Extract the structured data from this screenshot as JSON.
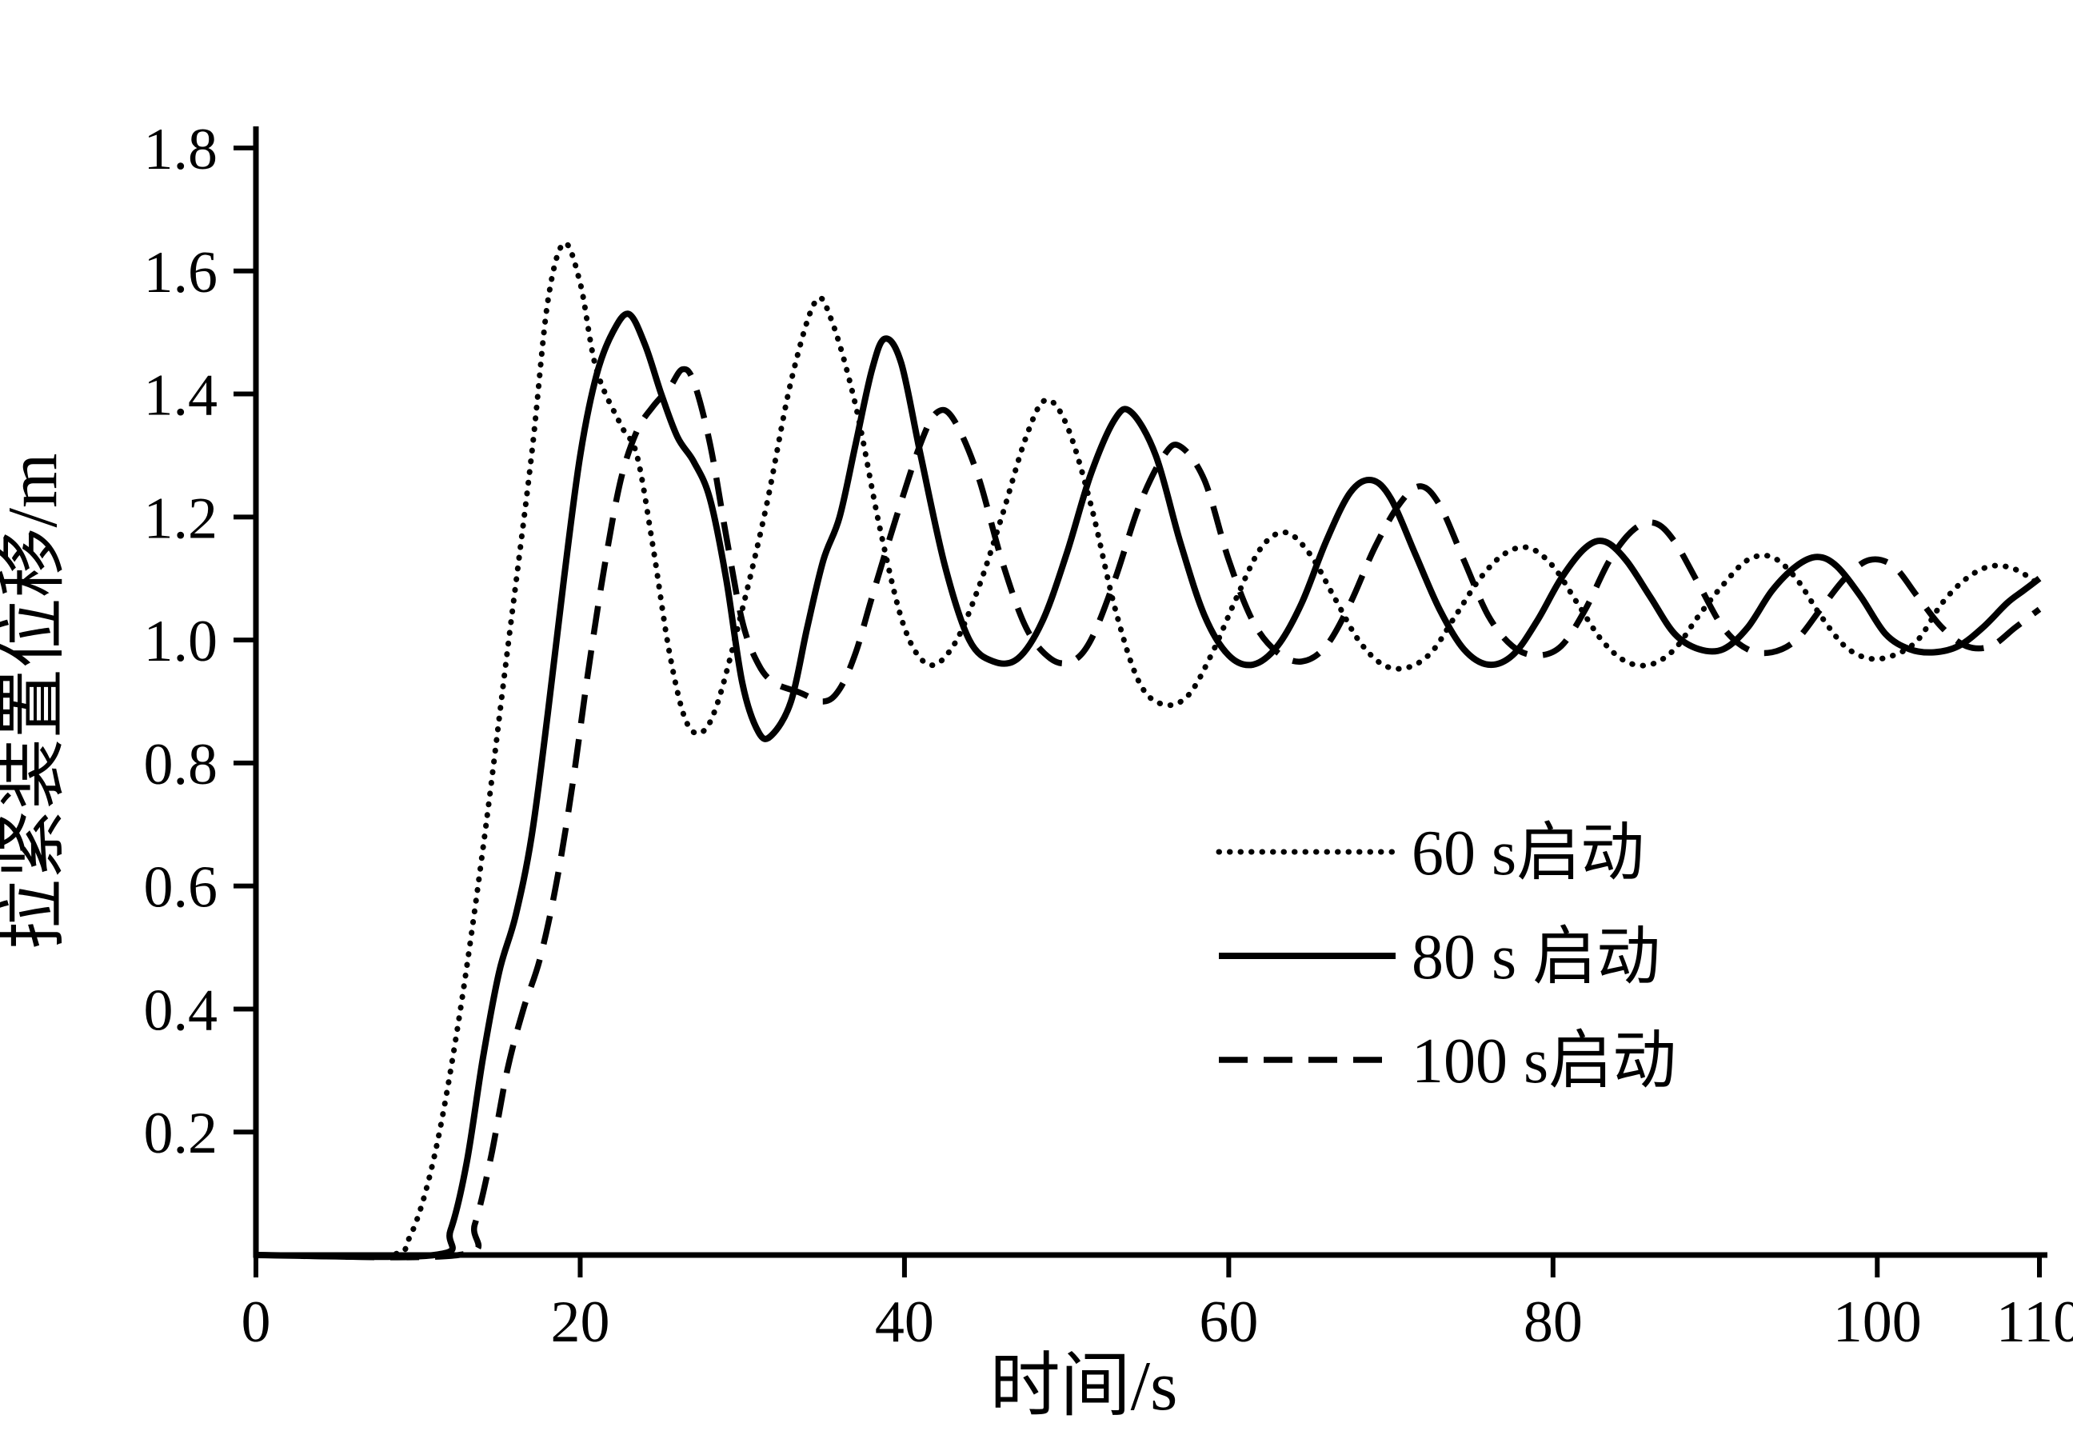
{
  "figure": {
    "background": "#ffffff",
    "axis_color": "#000000",
    "line_color": "#000000"
  },
  "chart_data": {
    "type": "line",
    "title": "",
    "xlabel": "时间/s",
    "ylabel": "拉紧装置位移/m",
    "xlim": [
      0,
      110
    ],
    "ylim": [
      0,
      1.8
    ],
    "x_ticks": [
      0,
      20,
      40,
      60,
      80,
      100,
      110
    ],
    "y_ticks": [
      0.2,
      0.4,
      0.6,
      0.8,
      1.0,
      1.2,
      1.4,
      1.6,
      1.8
    ],
    "grid": false,
    "legend_position": "inside-center-right",
    "series": [
      {
        "name": "60 s启动",
        "style": "dotted",
        "points": [
          [
            0,
            0
          ],
          [
            8,
            0
          ],
          [
            9.5,
            0.03
          ],
          [
            11,
            0.16
          ],
          [
            12.5,
            0.38
          ],
          [
            14,
            0.66
          ],
          [
            15.5,
            0.98
          ],
          [
            17,
            1.3
          ],
          [
            18,
            1.55
          ],
          [
            19,
            1.645
          ],
          [
            20,
            1.58
          ],
          [
            21,
            1.44
          ],
          [
            22.5,
            1.35
          ],
          [
            23.5,
            1.3
          ],
          [
            24.5,
            1.15
          ],
          [
            25.5,
            0.98
          ],
          [
            26.5,
            0.87
          ],
          [
            27.5,
            0.85
          ],
          [
            28.5,
            0.9
          ],
          [
            30,
            1.05
          ],
          [
            31.5,
            1.22
          ],
          [
            33,
            1.42
          ],
          [
            34.5,
            1.55
          ],
          [
            35.5,
            1.52
          ],
          [
            37,
            1.38
          ],
          [
            38.5,
            1.18
          ],
          [
            40,
            1.02
          ],
          [
            41.5,
            0.96
          ],
          [
            43,
            0.99
          ],
          [
            44.5,
            1.08
          ],
          [
            46,
            1.2
          ],
          [
            47.5,
            1.33
          ],
          [
            48.7,
            1.39
          ],
          [
            50,
            1.35
          ],
          [
            51.5,
            1.22
          ],
          [
            53,
            1.05
          ],
          [
            54.5,
            0.93
          ],
          [
            56,
            0.895
          ],
          [
            57.5,
            0.91
          ],
          [
            59,
            0.98
          ],
          [
            60.5,
            1.07
          ],
          [
            62,
            1.15
          ],
          [
            63.5,
            1.175
          ],
          [
            65,
            1.14
          ],
          [
            66.5,
            1.07
          ],
          [
            68,
            1.0
          ],
          [
            69.5,
            0.96
          ],
          [
            71,
            0.955
          ],
          [
            72.5,
            0.98
          ],
          [
            74,
            1.04
          ],
          [
            75.5,
            1.1
          ],
          [
            77,
            1.14
          ],
          [
            78.5,
            1.15
          ],
          [
            80,
            1.12
          ],
          [
            81.5,
            1.06
          ],
          [
            83,
            1.0
          ],
          [
            84.5,
            0.965
          ],
          [
            86,
            0.96
          ],
          [
            87.5,
            0.985
          ],
          [
            89,
            1.04
          ],
          [
            90.5,
            1.09
          ],
          [
            92,
            1.13
          ],
          [
            93.5,
            1.135
          ],
          [
            95,
            1.1
          ],
          [
            96.5,
            1.04
          ],
          [
            98,
            0.99
          ],
          [
            99.5,
            0.97
          ],
          [
            101,
            0.975
          ],
          [
            102.5,
            1.0
          ],
          [
            104,
            1.06
          ],
          [
            105.5,
            1.1
          ],
          [
            107,
            1.12
          ],
          [
            108.5,
            1.115
          ],
          [
            110,
            1.09
          ]
        ]
      },
      {
        "name": "80 s 启动",
        "style": "solid",
        "points": [
          [
            0,
            0
          ],
          [
            11,
            0
          ],
          [
            12,
            0.04
          ],
          [
            13,
            0.15
          ],
          [
            14,
            0.32
          ],
          [
            15,
            0.46
          ],
          [
            16,
            0.55
          ],
          [
            17,
            0.68
          ],
          [
            18,
            0.88
          ],
          [
            19,
            1.1
          ],
          [
            20,
            1.3
          ],
          [
            21,
            1.43
          ],
          [
            22,
            1.5
          ],
          [
            23,
            1.53
          ],
          [
            24,
            1.48
          ],
          [
            25,
            1.4
          ],
          [
            26,
            1.33
          ],
          [
            27,
            1.29
          ],
          [
            28,
            1.23
          ],
          [
            29,
            1.1
          ],
          [
            30,
            0.93
          ],
          [
            31,
            0.85
          ],
          [
            31.8,
            0.845
          ],
          [
            33,
            0.9
          ],
          [
            34,
            1.02
          ],
          [
            35,
            1.13
          ],
          [
            36,
            1.2
          ],
          [
            37,
            1.32
          ],
          [
            38,
            1.44
          ],
          [
            38.8,
            1.49
          ],
          [
            39.8,
            1.45
          ],
          [
            41,
            1.3
          ],
          [
            42.5,
            1.12
          ],
          [
            44,
            1.0
          ],
          [
            45.5,
            0.965
          ],
          [
            47,
            0.97
          ],
          [
            48.5,
            1.03
          ],
          [
            50,
            1.14
          ],
          [
            51.5,
            1.27
          ],
          [
            53,
            1.36
          ],
          [
            54,
            1.37
          ],
          [
            55.5,
            1.3
          ],
          [
            57,
            1.16
          ],
          [
            58.5,
            1.04
          ],
          [
            60,
            0.975
          ],
          [
            61.5,
            0.96
          ],
          [
            63,
            0.99
          ],
          [
            64.5,
            1.06
          ],
          [
            66,
            1.16
          ],
          [
            67.5,
            1.24
          ],
          [
            68.8,
            1.26
          ],
          [
            70,
            1.23
          ],
          [
            71.5,
            1.14
          ],
          [
            73,
            1.05
          ],
          [
            74.5,
            0.985
          ],
          [
            76,
            0.96
          ],
          [
            77.5,
            0.975
          ],
          [
            79,
            1.03
          ],
          [
            80.5,
            1.1
          ],
          [
            82,
            1.15
          ],
          [
            83.2,
            1.16
          ],
          [
            84.5,
            1.13
          ],
          [
            86,
            1.07
          ],
          [
            87.5,
            1.01
          ],
          [
            89,
            0.985
          ],
          [
            90.5,
            0.985
          ],
          [
            92,
            1.02
          ],
          [
            93.5,
            1.08
          ],
          [
            95,
            1.12
          ],
          [
            96.3,
            1.135
          ],
          [
            97.5,
            1.12
          ],
          [
            99,
            1.07
          ],
          [
            100.5,
            1.01
          ],
          [
            102,
            0.985
          ],
          [
            103.5,
            0.98
          ],
          [
            105,
            0.99
          ],
          [
            106.5,
            1.02
          ],
          [
            108,
            1.06
          ],
          [
            109,
            1.08
          ],
          [
            110,
            1.1
          ]
        ]
      },
      {
        "name": "100 s启动",
        "style": "dashed",
        "points": [
          [
            0,
            0
          ],
          [
            12.5,
            0
          ],
          [
            13.5,
            0.05
          ],
          [
            14.5,
            0.16
          ],
          [
            15.5,
            0.3
          ],
          [
            16.5,
            0.4
          ],
          [
            17.5,
            0.48
          ],
          [
            18.5,
            0.6
          ],
          [
            19.5,
            0.76
          ],
          [
            20.5,
            0.95
          ],
          [
            21.5,
            1.12
          ],
          [
            22.5,
            1.26
          ],
          [
            23.5,
            1.34
          ],
          [
            24.5,
            1.38
          ],
          [
            25.5,
            1.41
          ],
          [
            26.3,
            1.44
          ],
          [
            27,
            1.42
          ],
          [
            28,
            1.32
          ],
          [
            29,
            1.17
          ],
          [
            30,
            1.03
          ],
          [
            31,
            0.96
          ],
          [
            32,
            0.93
          ],
          [
            33.5,
            0.915
          ],
          [
            35,
            0.9
          ],
          [
            36,
            0.92
          ],
          [
            37,
            0.98
          ],
          [
            38,
            1.07
          ],
          [
            39.5,
            1.2
          ],
          [
            41,
            1.32
          ],
          [
            42,
            1.37
          ],
          [
            43,
            1.36
          ],
          [
            44.5,
            1.27
          ],
          [
            46,
            1.13
          ],
          [
            47.5,
            1.02
          ],
          [
            49,
            0.97
          ],
          [
            50.3,
            0.965
          ],
          [
            51.5,
            1.0
          ],
          [
            53,
            1.1
          ],
          [
            54.5,
            1.22
          ],
          [
            56,
            1.3
          ],
          [
            57,
            1.315
          ],
          [
            58.5,
            1.26
          ],
          [
            60,
            1.13
          ],
          [
            61.5,
            1.03
          ],
          [
            63,
            0.98
          ],
          [
            64.5,
            0.965
          ],
          [
            66,
            0.99
          ],
          [
            67.5,
            1.06
          ],
          [
            69,
            1.15
          ],
          [
            70.5,
            1.22
          ],
          [
            71.8,
            1.25
          ],
          [
            73,
            1.22
          ],
          [
            74.5,
            1.13
          ],
          [
            76,
            1.04
          ],
          [
            77.5,
            0.99
          ],
          [
            79,
            0.975
          ],
          [
            80.5,
            0.99
          ],
          [
            82,
            1.05
          ],
          [
            83.5,
            1.13
          ],
          [
            85,
            1.18
          ],
          [
            86.3,
            1.19
          ],
          [
            87.5,
            1.16
          ],
          [
            89,
            1.09
          ],
          [
            90.5,
            1.02
          ],
          [
            92,
            0.985
          ],
          [
            93.5,
            0.98
          ],
          [
            95,
            1.0
          ],
          [
            96.5,
            1.05
          ],
          [
            98,
            1.1
          ],
          [
            99.5,
            1.13
          ],
          [
            101,
            1.12
          ],
          [
            102.5,
            1.07
          ],
          [
            104,
            1.02
          ],
          [
            105.5,
            0.99
          ],
          [
            107,
            0.99
          ],
          [
            108.5,
            1.02
          ],
          [
            110,
            1.05
          ]
        ]
      }
    ]
  }
}
